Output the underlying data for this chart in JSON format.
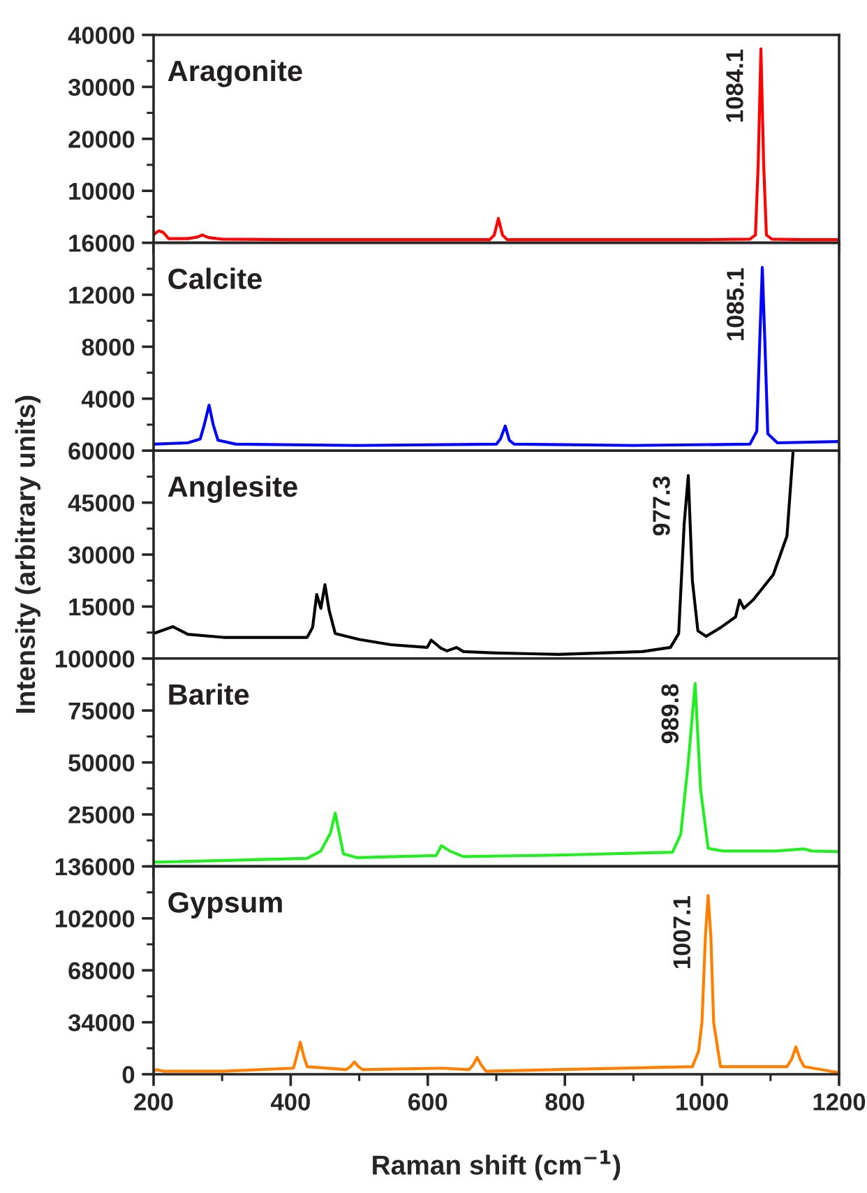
{
  "chart_data": [
    {
      "type": "line",
      "title": "Aragonite",
      "xlim": [
        200,
        1200
      ],
      "xticks": [
        200,
        400,
        600,
        800,
        1000,
        1200
      ],
      "ylim": [
        0,
        40000
      ],
      "yticks": [
        10000,
        20000,
        30000,
        40000
      ],
      "tick_labels": "y",
      "series": [
        {
          "color": "#ff0000",
          "x": [
            200,
            204,
            208,
            214,
            222,
            250,
            264,
            271,
            280,
            300,
            400,
            600,
            690,
            697,
            703,
            709,
            716,
            800,
            1000,
            1070,
            1078,
            1082,
            1086,
            1090,
            1094,
            1102,
            1150,
            1200
          ],
          "values": [
            1500,
            2000,
            2300,
            2000,
            800,
            800,
            1100,
            1500,
            1000,
            700,
            600,
            600,
            600,
            1500,
            4700,
            1500,
            600,
            600,
            600,
            700,
            1500,
            15000,
            37300,
            15000,
            1500,
            700,
            600,
            600
          ]
        }
      ],
      "annotations": [
        {
          "text": "1084.1",
          "x": 1084.1,
          "y": 37300
        }
      ]
    },
    {
      "type": "line",
      "title": "Calcite",
      "xlim": [
        200,
        1200
      ],
      "xticks": [
        200,
        400,
        600,
        800,
        1000,
        1200
      ],
      "ylim": [
        0,
        16000
      ],
      "yticks": [
        4000,
        8000,
        12000,
        16000
      ],
      "tick_labels": "y",
      "series": [
        {
          "color": "#0000ff",
          "x": [
            200,
            250,
            268,
            274,
            281,
            287,
            294,
            320,
            500,
            700,
            706,
            713,
            719,
            726,
            900,
            1070,
            1080,
            1084,
            1088,
            1092,
            1096,
            1110,
            1200
          ],
          "values": [
            500,
            600,
            900,
            2000,
            3500,
            2000,
            800,
            500,
            400,
            500,
            900,
            1900,
            800,
            500,
            400,
            500,
            1500,
            8000,
            14100,
            8000,
            1300,
            600,
            700
          ]
        }
      ],
      "annotations": [
        {
          "text": "1085.1",
          "x": 1085.1,
          "y": 14100
        }
      ]
    },
    {
      "type": "line",
      "title": "Anglesite",
      "xlim": [
        200,
        1200
      ],
      "xticks": [
        200,
        400,
        600,
        800,
        1000,
        1200
      ],
      "ylim": [
        0,
        60000
      ],
      "yticks": [
        15000,
        30000,
        45000,
        60000
      ],
      "tick_labels": "y",
      "ylabel": "Intensity (arbitrary units)",
      "series": [
        {
          "color": "#000000",
          "x": [
            200,
            228,
            250,
            302,
            424,
            432,
            438,
            444,
            450,
            456,
            465,
            500,
            546,
            599,
            605,
            619,
            628,
            642,
            652,
            700,
            791,
            913,
            954,
            966,
            974,
            980,
            986,
            994,
            1006,
            1027,
            1049,
            1055,
            1061,
            1075,
            1104,
            1124,
            1133
          ],
          "values": [
            7200,
            9200,
            7000,
            6100,
            6100,
            9000,
            18500,
            14500,
            21300,
            14000,
            7200,
            5500,
            4000,
            3200,
            5300,
            3000,
            2200,
            3200,
            2000,
            1600,
            1200,
            2000,
            3200,
            7200,
            38700,
            52800,
            22500,
            8000,
            6400,
            8900,
            12000,
            16900,
            14500,
            17000,
            24200,
            35400,
            60000
          ]
        }
      ],
      "annotations": [
        {
          "text": "977.3",
          "x": 977.3,
          "y": 52800
        }
      ]
    },
    {
      "type": "line",
      "title": "Barite",
      "xlim": [
        200,
        1200
      ],
      "xticks": [
        200,
        400,
        600,
        800,
        1000,
        1200
      ],
      "ylim": [
        0,
        100000
      ],
      "yticks": [
        25000,
        50000,
        75000,
        100000
      ],
      "tick_labels": "y",
      "series": [
        {
          "color": "#22ee22",
          "x": [
            200,
            424,
            444,
            458,
            465,
            472,
            477,
            497,
            612,
            620,
            632,
            652,
            800,
            957,
            969,
            980,
            990,
            998,
            1009,
            1030,
            1108,
            1149,
            1160,
            1200
          ],
          "values": [
            2000,
            3900,
            7400,
            16000,
            25600,
            14000,
            6000,
            4200,
            5200,
            10000,
            7400,
            4700,
            5500,
            6800,
            15400,
            50000,
            88000,
            37000,
            8700,
            7400,
            7400,
            8400,
            7400,
            7100
          ]
        }
      ],
      "annotations": [
        {
          "text": "989.8",
          "x": 989.8,
          "y": 88000
        }
      ]
    },
    {
      "type": "line",
      "title": "Gypsum",
      "xlim": [
        200,
        1200
      ],
      "xticks": [
        200,
        400,
        600,
        800,
        1000,
        1200
      ],
      "ylim": [
        0,
        136000
      ],
      "yticks": [
        0,
        34000,
        68000,
        102000,
        136000
      ],
      "xlabel": "Raman shift (cm$^{−1}$)",
      "series": [
        {
          "color": "#ff8000",
          "x": [
            200,
            204,
            215,
            302,
            404,
            409,
            414,
            419,
            424,
            481,
            487,
            493,
            499,
            505,
            620,
            660,
            666,
            672,
            678,
            685,
            986,
            995,
            1000,
            1005,
            1009,
            1013,
            1017,
            1027,
            1124,
            1131,
            1137,
            1143,
            1149,
            1200
          ],
          "values": [
            2000,
            3000,
            2000,
            2000,
            4000,
            12000,
            21000,
            12000,
            5000,
            3000,
            5000,
            8000,
            5000,
            3000,
            4000,
            3000,
            6000,
            11000,
            6000,
            2000,
            5000,
            15000,
            34000,
            90000,
            117000,
            90000,
            34000,
            5000,
            5000,
            10000,
            18000,
            10000,
            5000,
            1000
          ]
        }
      ],
      "annotations": [
        {
          "text": "1007.1",
          "x": 1007.1,
          "y": 117000
        }
      ]
    }
  ]
}
